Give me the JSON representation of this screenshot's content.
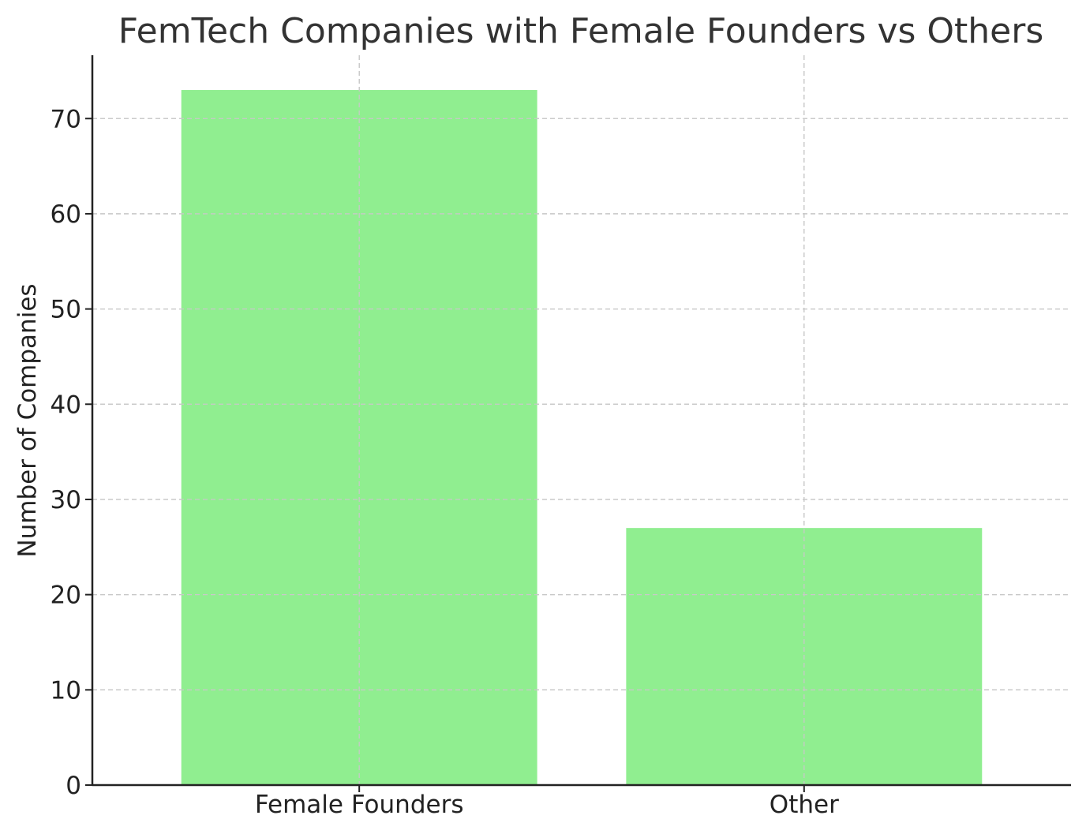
{
  "chart_data": {
    "type": "bar",
    "title": "FemTech Companies with Female Founders vs Others",
    "xlabel": "",
    "ylabel": "Number of Companies",
    "categories": [
      "Female Founders",
      "Other"
    ],
    "values": [
      73,
      27
    ],
    "ylim": [
      0,
      76.65
    ],
    "yticks": [
      0,
      10,
      20,
      30,
      40,
      50,
      60,
      70
    ],
    "grid": true,
    "colors": {
      "bar": "#90ee90",
      "grid": "#c8c8c8",
      "axis": "#222222",
      "title": "#333333"
    }
  }
}
